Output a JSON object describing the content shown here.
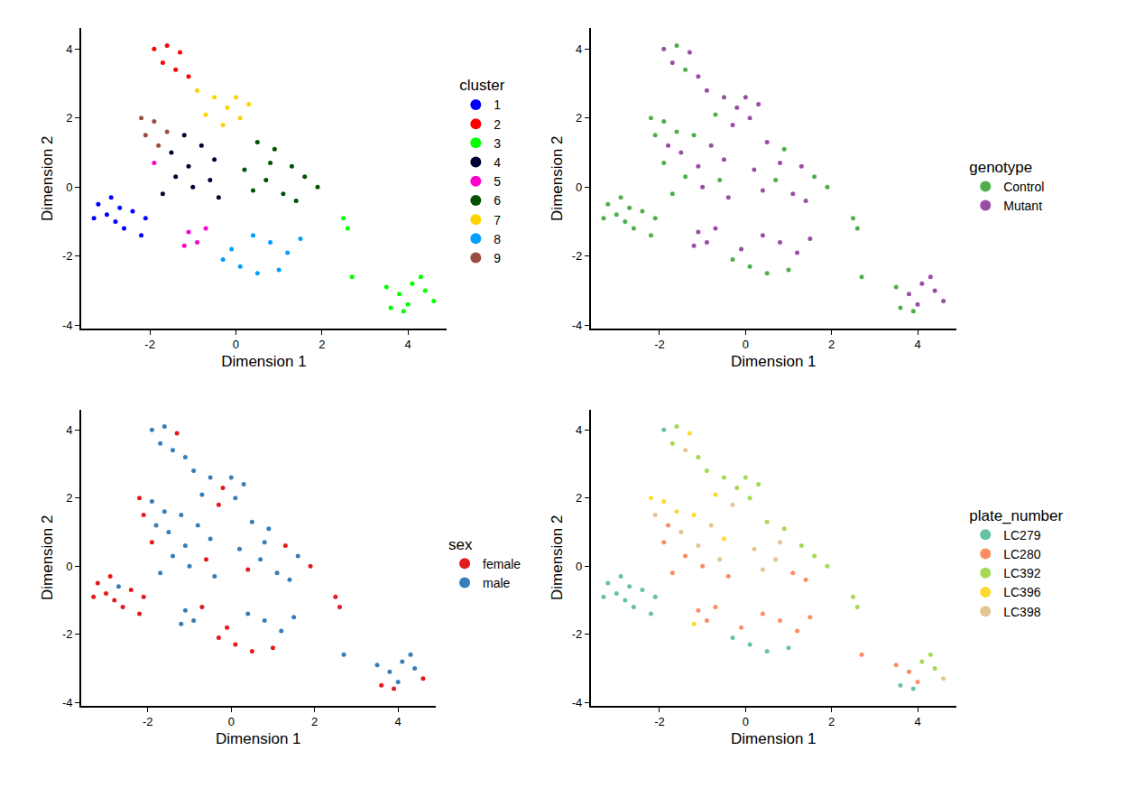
{
  "chart_data": [
    {
      "type": "scatter",
      "legend_title": "cluster",
      "x_label": "Dimension 1",
      "y_label": "Dimension 2",
      "xlim": [
        -3.6,
        4.9
      ],
      "ylim": [
        -4.1,
        4.6
      ],
      "xticks": [
        -2,
        0,
        2,
        4
      ],
      "yticks": [
        -4,
        -2,
        0,
        2,
        4
      ],
      "grid": false,
      "marker": "circle",
      "series": [
        {
          "name": "1",
          "color": "#0000FF",
          "x": [
            -3.2,
            -3.0,
            -2.8,
            -2.6,
            -2.4,
            -2.9,
            -2.2,
            -2.7,
            -2.1,
            -3.3
          ],
          "values": [
            -0.5,
            -0.8,
            -1.0,
            -1.2,
            -0.7,
            -0.3,
            -1.4,
            -0.6,
            -0.9,
            -0.9
          ]
        },
        {
          "name": "2",
          "color": "#FF0000",
          "x": [
            -1.9,
            -1.6,
            -1.3,
            -1.7,
            -1.4,
            -1.1
          ],
          "values": [
            4.0,
            4.1,
            3.9,
            3.6,
            3.4,
            3.2
          ]
        },
        {
          "name": "3",
          "color": "#00FF00",
          "x": [
            3.5,
            3.8,
            4.1,
            4.4,
            4.6,
            3.6,
            4.0,
            4.3,
            2.6,
            2.5,
            2.7,
            3.9
          ],
          "values": [
            -2.9,
            -3.1,
            -2.8,
            -3.0,
            -3.3,
            -3.5,
            -3.4,
            -2.6,
            -1.2,
            -0.9,
            -2.6,
            -3.6
          ]
        },
        {
          "name": "4",
          "color": "#000033",
          "x": [
            -1.5,
            -1.2,
            -0.8,
            -0.5,
            -1.4,
            -1.0,
            -0.6,
            -1.7,
            -1.1,
            -0.4
          ],
          "values": [
            1.0,
            1.5,
            1.2,
            0.8,
            0.3,
            0.0,
            0.2,
            -0.2,
            0.6,
            -0.3
          ]
        },
        {
          "name": "5",
          "color": "#FF00CC",
          "x": [
            -1.1,
            -0.9,
            -0.7,
            -1.2,
            -1.9
          ],
          "values": [
            -1.3,
            -1.6,
            -1.2,
            -1.7,
            0.7
          ]
        },
        {
          "name": "6",
          "color": "#005300",
          "x": [
            0.5,
            0.9,
            1.3,
            0.2,
            0.7,
            1.1,
            1.6,
            1.9,
            0.4,
            1.4,
            0.8
          ],
          "values": [
            1.3,
            1.1,
            0.6,
            0.5,
            0.2,
            -0.2,
            0.3,
            0.0,
            -0.1,
            -0.4,
            0.7
          ]
        },
        {
          "name": "7",
          "color": "#FFD300",
          "x": [
            -0.9,
            -0.5,
            -0.2,
            0.1,
            -0.7,
            0.3,
            -0.3,
            0.0
          ],
          "values": [
            2.8,
            2.6,
            2.3,
            2.0,
            2.1,
            2.4,
            1.8,
            2.6
          ]
        },
        {
          "name": "8",
          "color": "#009FFF",
          "x": [
            -0.3,
            0.1,
            0.5,
            0.8,
            1.2,
            0.4,
            1.0,
            1.5,
            -0.1
          ],
          "values": [
            -2.1,
            -2.3,
            -2.5,
            -1.6,
            -1.9,
            -1.4,
            -2.4,
            -1.5,
            -1.8
          ]
        },
        {
          "name": "9",
          "color": "#9A4D42",
          "x": [
            -2.2,
            -1.9,
            -1.6,
            -2.1,
            -1.8
          ],
          "values": [
            2.0,
            1.9,
            1.6,
            1.5,
            1.2
          ]
        }
      ]
    },
    {
      "type": "scatter",
      "legend_title": "genotype",
      "x_label": "Dimension 1",
      "y_label": "Dimension 2",
      "xlim": [
        -3.6,
        4.9
      ],
      "ylim": [
        -4.1,
        4.6
      ],
      "xticks": [
        -2,
        0,
        2,
        4
      ],
      "yticks": [
        -4,
        -2,
        0,
        2,
        4
      ],
      "grid": false,
      "marker": "circle",
      "series": [
        {
          "name": "Control",
          "color": "#4DAF4A",
          "x": [
            -3.2,
            -3.0,
            -2.8,
            -2.6,
            -2.4,
            -2.9,
            -2.2,
            -2.7,
            -2.1,
            -3.3,
            -1.6,
            -1.4,
            -0.7,
            -2.2,
            -1.9,
            -1.6,
            -2.1,
            -1.2,
            -1.4,
            -0.6,
            -1.7,
            -1.9,
            0.9,
            0.7,
            1.6,
            1.9,
            3.5,
            3.6,
            2.6,
            2.5,
            2.7,
            3.9,
            -0.3,
            0.1,
            0.5,
            1.0
          ],
          "values": [
            -0.5,
            -0.8,
            -1.0,
            -1.2,
            -0.7,
            -0.3,
            -1.4,
            -0.6,
            -0.9,
            -0.9,
            4.1,
            3.4,
            2.1,
            2.0,
            1.9,
            1.6,
            1.5,
            1.5,
            0.3,
            0.2,
            -0.2,
            0.7,
            1.1,
            0.2,
            0.3,
            0.0,
            -2.9,
            -3.5,
            -1.2,
            -0.9,
            -2.6,
            -3.6,
            -2.1,
            -2.3,
            -2.5,
            -2.4
          ]
        },
        {
          "name": "Mutant",
          "color": "#984EA3",
          "x": [
            -1.9,
            -1.3,
            -1.7,
            -1.1,
            -0.9,
            -0.5,
            -0.2,
            0.1,
            0.3,
            -0.3,
            0.0,
            -1.8,
            -1.5,
            -0.8,
            -0.5,
            -1.0,
            -1.1,
            -0.4,
            -1.1,
            -0.9,
            -0.7,
            -1.2,
            0.5,
            1.3,
            0.2,
            1.1,
            0.4,
            1.4,
            0.8,
            3.8,
            4.1,
            4.4,
            4.6,
            4.0,
            4.3,
            0.8,
            1.2,
            0.4,
            1.5,
            -0.1
          ],
          "values": [
            4.0,
            3.9,
            3.6,
            3.2,
            2.8,
            2.6,
            2.3,
            2.0,
            2.4,
            1.8,
            2.6,
            1.2,
            1.0,
            1.2,
            0.8,
            0.0,
            0.6,
            -0.3,
            -1.3,
            -1.6,
            -1.2,
            -1.7,
            1.3,
            0.6,
            0.5,
            -0.2,
            -0.1,
            -0.4,
            0.7,
            -3.1,
            -2.8,
            -3.0,
            -3.3,
            -3.4,
            -2.6,
            -1.6,
            -1.9,
            -1.4,
            -1.5,
            -1.8
          ]
        }
      ]
    },
    {
      "type": "scatter",
      "legend_title": "sex",
      "x_label": "Dimension 1",
      "y_label": "Dimension 2",
      "xlim": [
        -3.6,
        4.9
      ],
      "ylim": [
        -4.1,
        4.6
      ],
      "xticks": [
        -2,
        0,
        2,
        4
      ],
      "yticks": [
        -4,
        -2,
        0,
        2,
        4
      ],
      "grid": false,
      "marker": "circle",
      "series": [
        {
          "name": "female",
          "color": "#E41A1C",
          "x": [
            -3.2,
            -3.0,
            -2.8,
            -2.6,
            -2.4,
            -2.9,
            -2.2,
            -2.1,
            -3.3,
            -1.3,
            -0.2,
            -0.3,
            -2.2,
            -2.1,
            -0.6,
            -0.7,
            -1.9,
            1.3,
            1.9,
            0.4,
            4.6,
            3.6,
            2.6,
            2.5,
            3.9,
            -0.3,
            0.1,
            0.5,
            1.0,
            -0.1
          ],
          "values": [
            -0.5,
            -0.8,
            -1.0,
            -1.2,
            -0.7,
            -0.3,
            -1.4,
            -0.9,
            -0.9,
            3.9,
            2.3,
            1.8,
            2.0,
            1.5,
            0.2,
            -1.2,
            0.7,
            0.6,
            0.0,
            -0.1,
            -3.3,
            -3.5,
            -1.2,
            -0.9,
            -3.6,
            -2.1,
            -2.3,
            -2.5,
            -2.4,
            -1.8
          ]
        },
        {
          "name": "male",
          "color": "#377EB8",
          "x": [
            -2.7,
            -1.9,
            -1.6,
            -1.7,
            -1.4,
            -1.1,
            -0.9,
            -0.5,
            0.1,
            -0.7,
            0.3,
            0.0,
            -1.9,
            -1.6,
            -1.8,
            -1.5,
            -1.2,
            -0.8,
            -0.5,
            -1.4,
            -1.0,
            -1.7,
            -1.1,
            -0.4,
            -1.1,
            -0.9,
            -1.2,
            0.5,
            0.9,
            0.2,
            0.7,
            1.1,
            1.6,
            1.4,
            0.8,
            3.5,
            3.8,
            4.1,
            4.4,
            4.0,
            4.3,
            2.7,
            0.8,
            1.2,
            0.4,
            1.5
          ],
          "values": [
            -0.6,
            4.0,
            4.1,
            3.6,
            3.4,
            3.2,
            2.8,
            2.6,
            2.0,
            2.1,
            2.4,
            2.6,
            1.9,
            1.6,
            1.2,
            1.0,
            1.5,
            1.2,
            0.8,
            0.3,
            0.0,
            -0.2,
            0.6,
            -0.3,
            -1.3,
            -1.6,
            -1.7,
            1.3,
            1.1,
            0.5,
            0.2,
            -0.2,
            0.3,
            -0.4,
            0.7,
            -2.9,
            -3.1,
            -2.8,
            -3.0,
            -3.4,
            -2.6,
            -2.6,
            -1.6,
            -1.9,
            -1.4,
            -1.5
          ]
        }
      ]
    },
    {
      "type": "scatter",
      "legend_title": "plate_number",
      "x_label": "Dimension 1",
      "y_label": "Dimension 2",
      "xlim": [
        -3.6,
        4.9
      ],
      "ylim": [
        -4.1,
        4.6
      ],
      "xticks": [
        -2,
        0,
        2,
        4
      ],
      "yticks": [
        -4,
        -2,
        0,
        2,
        4
      ],
      "grid": false,
      "marker": "circle",
      "series": [
        {
          "name": "LC279",
          "color": "#66C2A5",
          "x": [
            -3.2,
            -3.0,
            -2.8,
            -2.6,
            -2.4,
            -2.9,
            -2.2,
            -2.7,
            -2.1,
            -3.3,
            -1.9,
            3.6,
            3.9,
            -0.3,
            0.1,
            0.5,
            1.0
          ],
          "values": [
            -0.5,
            -0.8,
            -1.0,
            -1.2,
            -0.7,
            -0.3,
            -1.4,
            -0.6,
            -0.9,
            -0.9,
            4.0,
            -3.5,
            -3.6,
            -2.1,
            -2.3,
            -2.5,
            -2.4
          ]
        },
        {
          "name": "LC280",
          "color": "#FC8D62",
          "x": [
            -1.8,
            -1.4,
            -1.0,
            -1.7,
            -0.4,
            -1.1,
            -0.9,
            -0.7,
            -1.9,
            1.1,
            1.4,
            3.5,
            3.8,
            4.0,
            2.7,
            0.8,
            1.2,
            0.4,
            1.5,
            -0.1
          ],
          "values": [
            1.2,
            0.3,
            0.0,
            -0.2,
            -0.3,
            -1.3,
            -1.6,
            -1.2,
            0.7,
            -0.2,
            -0.4,
            -2.9,
            -3.1,
            -3.4,
            -2.6,
            -1.6,
            -1.9,
            -1.4,
            -1.5,
            -1.8
          ]
        },
        {
          "name": "LC392",
          "color": "#A6D854",
          "x": [
            -1.6,
            -1.7,
            -1.1,
            -0.9,
            -0.5,
            -0.2,
            0.1,
            0.3,
            0.0,
            0.5,
            0.9,
            1.3,
            1.6,
            1.9,
            4.1,
            4.4,
            4.3,
            2.6,
            2.5
          ],
          "values": [
            4.1,
            3.6,
            3.2,
            2.8,
            2.6,
            2.3,
            2.0,
            2.4,
            2.6,
            1.3,
            1.1,
            0.6,
            0.3,
            0.0,
            -2.8,
            -3.0,
            -2.6,
            -1.2,
            -0.9
          ]
        },
        {
          "name": "LC396",
          "color": "#FFD92F",
          "x": [
            -1.3,
            -0.7,
            -2.2,
            -1.9,
            -1.6,
            -1.2,
            -0.5,
            -1.2
          ],
          "values": [
            3.9,
            2.1,
            2.0,
            1.9,
            1.6,
            1.5,
            0.8,
            -1.7
          ]
        },
        {
          "name": "LC398",
          "color": "#E5C494",
          "x": [
            -1.4,
            -0.3,
            -2.1,
            -1.5,
            -0.8,
            -0.6,
            -1.1,
            0.2,
            0.7,
            0.4,
            0.8,
            4.6
          ],
          "values": [
            3.4,
            1.8,
            1.5,
            1.0,
            1.2,
            0.2,
            0.6,
            0.5,
            0.2,
            -0.1,
            0.7,
            -3.3
          ]
        }
      ]
    }
  ]
}
